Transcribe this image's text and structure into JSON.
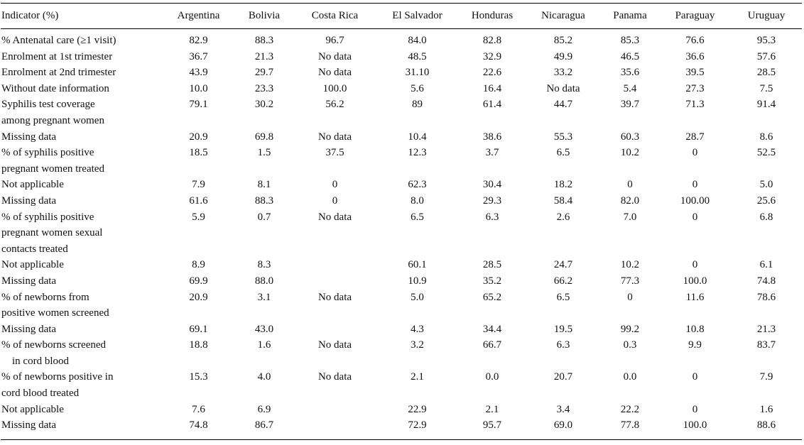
{
  "header": {
    "indicator": "Indicator (%)",
    "countries": [
      "Argentina",
      "Bolivia",
      "Costa Rica",
      "El Salvador",
      "Honduras",
      "Nicaragua",
      "Panama",
      "Paraguay",
      "Uruguay"
    ]
  },
  "rows": [
    {
      "label": [
        "% Antenatal care (≥1 visit)"
      ],
      "values": [
        "82.9",
        "88.3",
        "96.7",
        "84.0",
        "82.8",
        "85.2",
        "85.3",
        "76.6",
        "95.3"
      ]
    },
    {
      "label": [
        "Enrolment at 1st trimester"
      ],
      "values": [
        "36.7",
        "21.3",
        "No data",
        "48.5",
        "32.9",
        "49.9",
        "46.5",
        "36.6",
        "57.6"
      ]
    },
    {
      "label": [
        "Enrolment at 2nd trimester"
      ],
      "values": [
        "43.9",
        "29.7",
        "No data",
        "31.10",
        "22.6",
        "33.2",
        "35.6",
        "39.5",
        "28.5"
      ]
    },
    {
      "label": [
        "Without date information"
      ],
      "values": [
        "10.0",
        "23.3",
        "100.0",
        "5.6",
        "16.4",
        "No data",
        "5.4",
        "27.3",
        "7.5"
      ]
    },
    {
      "label": [
        "Syphilis test coverage",
        "among pregnant women"
      ],
      "values": [
        "79.1",
        "30.2",
        "56.2",
        "89",
        "61.4",
        "44.7",
        "39.7",
        "71.3",
        "91.4"
      ]
    },
    {
      "label": [
        "Missing data"
      ],
      "values": [
        "20.9",
        "69.8",
        "No data",
        "10.4",
        "38.6",
        "55.3",
        "60.3",
        "28.7",
        "8.6"
      ]
    },
    {
      "label": [
        "% of syphilis positive",
        "pregnant women treated"
      ],
      "values": [
        "18.5",
        "1.5",
        "37.5",
        "12.3",
        "3.7",
        "6.5",
        "10.2",
        "0",
        "52.5"
      ]
    },
    {
      "label": [
        "Not applicable"
      ],
      "values": [
        "7.9",
        "8.1",
        "0",
        "62.3",
        "30.4",
        "18.2",
        "0",
        "0",
        "5.0"
      ]
    },
    {
      "label": [
        "Missing data"
      ],
      "values": [
        "61.6",
        "88.3",
        "0",
        "8.0",
        "29.3",
        "58.4",
        "82.0",
        "100.00",
        "25.6"
      ]
    },
    {
      "label": [
        "% of syphilis positive",
        "pregnant women sexual",
        "contacts treated"
      ],
      "values": [
        "5.9",
        "0.7",
        "No data",
        "6.5",
        "6.3",
        "2.6",
        "7.0",
        "0",
        "6.8"
      ]
    },
    {
      "label": [
        "Not applicable"
      ],
      "values": [
        "8.9",
        "8.3",
        "",
        "60.1",
        "28.5",
        "24.7",
        "10.2",
        "0",
        "6.1"
      ]
    },
    {
      "label": [
        "Missing data"
      ],
      "values": [
        "69.9",
        "88.0",
        "",
        "10.9",
        "35.2",
        "66.2",
        "77.3",
        "100.0",
        "74.8"
      ]
    },
    {
      "label": [
        "% of newborns from",
        "positive women screened"
      ],
      "values": [
        "20.9",
        "3.1",
        "No data",
        "5.0",
        "65.2",
        "6.5",
        "0",
        "11.6",
        "78.6"
      ]
    },
    {
      "label": [
        "Missing data"
      ],
      "values": [
        "69.1",
        "43.0",
        "",
        "4.3",
        "34.4",
        "19.5",
        "99.2",
        "10.8",
        "21.3"
      ]
    },
    {
      "label": [
        "% of newborns screened",
        "in cord blood"
      ],
      "values": [
        "18.8",
        "1.6",
        "No data",
        "3.2",
        "66.7",
        "6.3",
        "0.3",
        "9.9",
        "83.7"
      ]
    },
    {
      "label": [
        "% of newborns positive in",
        "cord blood treated"
      ],
      "values": [
        "15.3",
        "4.0",
        "No data",
        "2.1",
        "0.0",
        "20.7",
        "0.0",
        "0",
        "7.9"
      ]
    },
    {
      "label": [
        "Not applicable"
      ],
      "values": [
        "7.6",
        "6.9",
        "",
        "22.9",
        "2.1",
        "3.4",
        "22.2",
        "0",
        "1.6"
      ]
    },
    {
      "label": [
        "Missing data"
      ],
      "values": [
        "74.8",
        "86.7",
        "",
        "72.9",
        "95.7",
        "69.0",
        "77.8",
        "100.0",
        "88.6"
      ]
    }
  ]
}
